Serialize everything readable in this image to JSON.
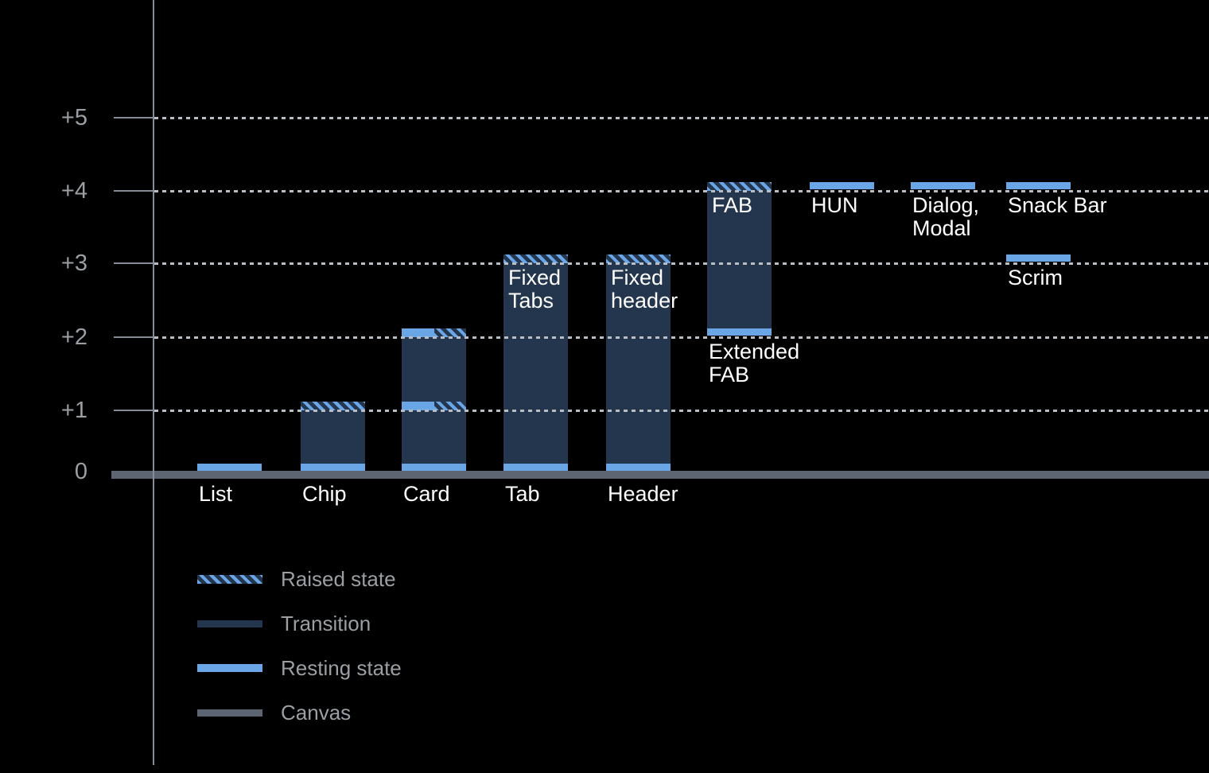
{
  "colors": {
    "background": "#000000",
    "resting_blue": "#6aa5e6",
    "transition_navy": "#24364e",
    "canvas_gray": "#5d6572",
    "axis_gray": "#878d96",
    "gridline_gray": "#b9bec4",
    "text_gray": "#9b9fa4",
    "text_white": "#ffffff"
  },
  "chart_data": {
    "type": "bar",
    "title": "",
    "subtitle": "",
    "xlabel": "",
    "ylabel": "",
    "ylim": [
      0,
      5.5
    ],
    "grid": "dotted horizontal line at each elevation step, drawn over bars",
    "legend_position": "bottom-left",
    "axis_ticks": [
      {
        "label": "+5",
        "value": 5
      },
      {
        "label": "+4",
        "value": 4
      },
      {
        "label": "+3",
        "value": 3
      },
      {
        "label": "+2",
        "value": 2
      },
      {
        "label": "+1",
        "value": 1
      },
      {
        "label": "0",
        "value": 0
      }
    ],
    "components": [
      {
        "label": "List",
        "col": 0,
        "resting": [
          0
        ],
        "transition": null,
        "raised": [],
        "label_pos": "axis"
      },
      {
        "label": "Chip",
        "col": 1,
        "resting": [
          0
        ],
        "transition": [
          0,
          1
        ],
        "raised": [
          1
        ],
        "label_pos": "axis"
      },
      {
        "label": "Card",
        "col": 2,
        "resting": [
          0,
          1,
          2
        ],
        "transition": [
          0,
          2
        ],
        "raised": [
          1,
          2
        ],
        "label_pos": "axis"
      },
      {
        "label": "Tab",
        "col": 3,
        "resting": [
          0
        ],
        "transition": [
          0,
          3
        ],
        "raised": [
          3
        ],
        "label_pos": "axis",
        "inner_label": "Fixed\nTabs"
      },
      {
        "label": "Header",
        "col": 4,
        "resting": [
          0
        ],
        "transition": [
          0,
          3
        ],
        "raised": [
          3
        ],
        "label_pos": "axis",
        "inner_label": "Fixed\nheader"
      },
      {
        "label": "Extended\nFAB",
        "col": 5,
        "resting": [
          2
        ],
        "transition": [
          2,
          4
        ],
        "raised": [
          4
        ],
        "label_pos": "below",
        "inner_label": "FAB"
      },
      {
        "label": "HUN",
        "col": 6,
        "resting": [
          4
        ],
        "transition": null,
        "raised": [],
        "label_pos": "below"
      },
      {
        "label": "Dialog,\nModal",
        "col": 7,
        "resting": [
          4
        ],
        "transition": null,
        "raised": [],
        "label_pos": "below"
      },
      {
        "label": "Snack Bar",
        "col": 8,
        "resting": [
          4
        ],
        "transition": null,
        "raised": [],
        "label_pos": "below"
      },
      {
        "label": "Scrim",
        "col": 8,
        "resting": [
          3
        ],
        "transition": null,
        "raised": [],
        "label_pos": "below"
      }
    ],
    "legend": [
      {
        "label": "Raised state",
        "swatch": "raised"
      },
      {
        "label": "Transition",
        "swatch": "transition"
      },
      {
        "label": "Resting state",
        "swatch": "resting"
      },
      {
        "label": "Canvas",
        "swatch": "canvas"
      }
    ]
  }
}
